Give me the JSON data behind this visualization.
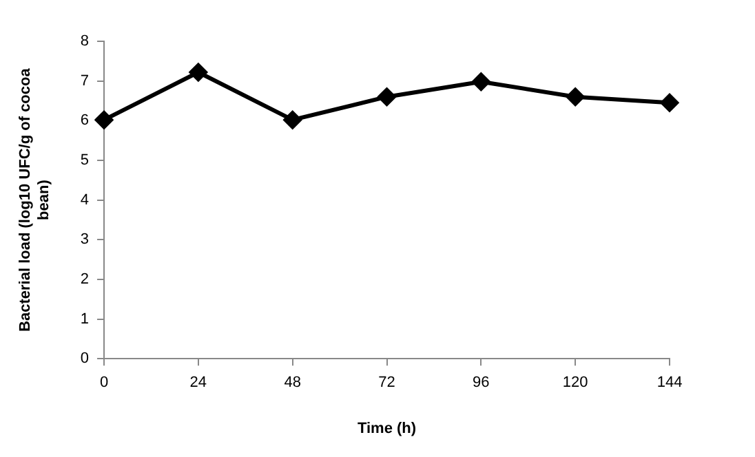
{
  "chart_data": {
    "type": "line",
    "xlabel": "Time (h)",
    "ylabel": "Bacterial load (log10 UFC/g of cocoa bean)",
    "categories": [
      "0",
      "24",
      "48",
      "72",
      "96",
      "120",
      "144"
    ],
    "series": [
      {
        "color": "#000000",
        "values": [
          6.02,
          7.22,
          6.02,
          6.6,
          6.98,
          6.6,
          6.45
        ]
      }
    ],
    "ylim": [
      0,
      8
    ],
    "yticks": [
      0,
      1,
      2,
      3,
      4,
      5,
      6,
      7,
      8
    ],
    "grid": false,
    "legend": false,
    "marker": "diamond",
    "line_style": "solid"
  }
}
